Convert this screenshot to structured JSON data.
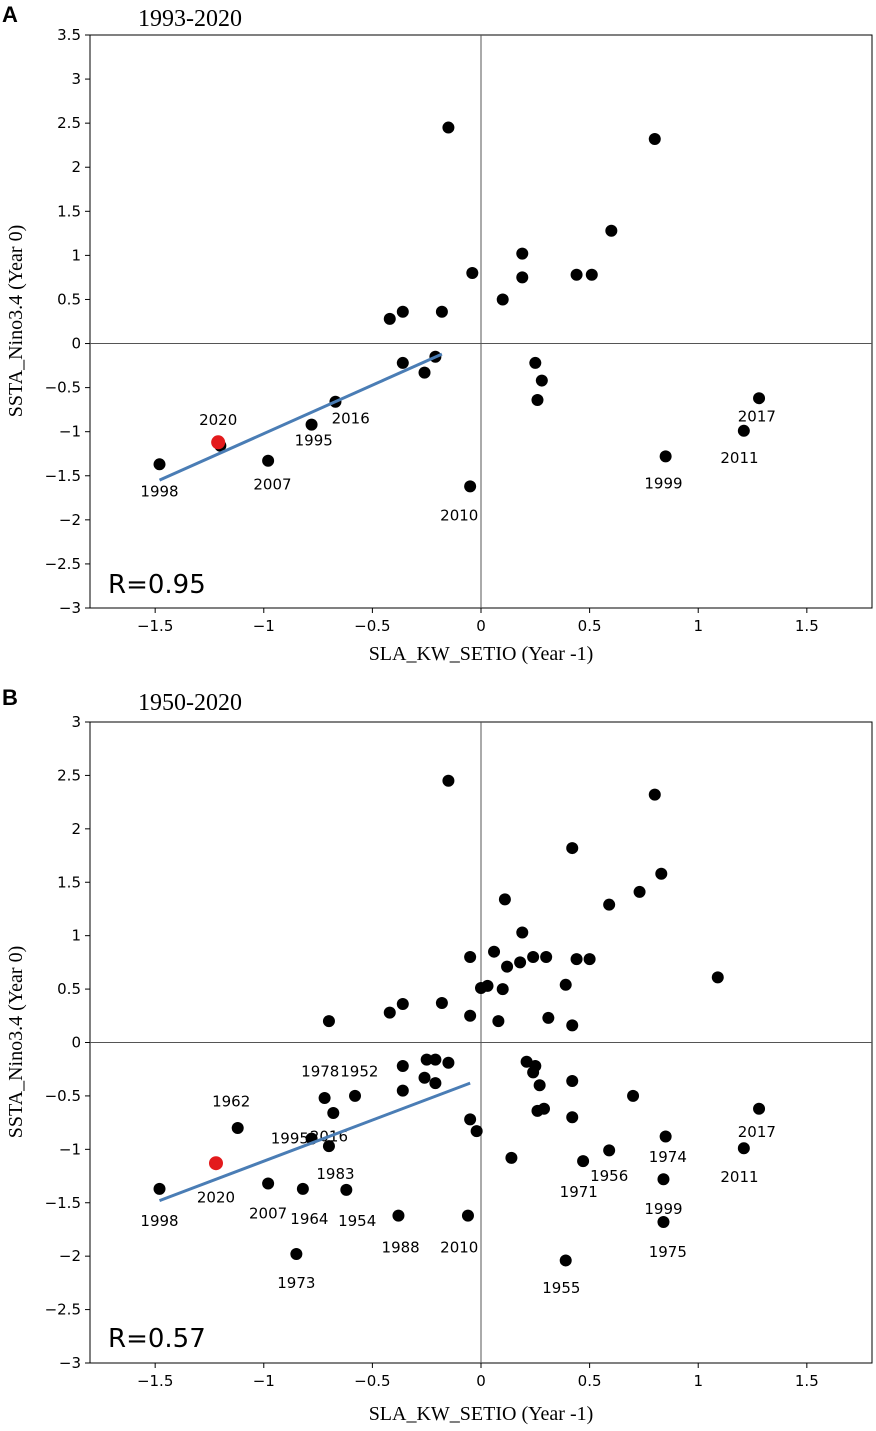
{
  "colors": {
    "point": "#000000",
    "highlight": "#e31a1c",
    "regression": "#4a7db5",
    "axis": "#000000",
    "zeroline": "#555555"
  },
  "chart_data": [
    {
      "type": "scatter",
      "panel": "A",
      "title": "1993-2020",
      "xlabel": "SLA_KW_SETIO (Year -1)",
      "ylabel": "SSTA_Nino3.4 (Year 0)",
      "xlim": [
        -1.8,
        1.8
      ],
      "ylim": [
        -3,
        3.5
      ],
      "xticks": [
        -1.5,
        -1,
        -0.5,
        0,
        0.5,
        1,
        1.5
      ],
      "xtick_labels": [
        "−1.5",
        "−1",
        "−0.5",
        "0",
        "0.5",
        "1",
        "1.5"
      ],
      "yticks": [
        -3,
        -2.5,
        -2,
        -1.5,
        -1,
        -0.5,
        0,
        0.5,
        1,
        1.5,
        2,
        2.5,
        3,
        3.5
      ],
      "ytick_labels": [
        "−3",
        "−2.5",
        "−2",
        "−1.5",
        "−1",
        "−0.5",
        "0",
        "0.5",
        "1",
        "1.5",
        "2",
        "2.5",
        "3",
        "3.5"
      ],
      "r_text": "R=0.95",
      "regression": {
        "x": [
          -1.48,
          -0.18
        ],
        "y": [
          -1.55,
          -0.12
        ]
      },
      "highlight": {
        "label": "2020",
        "x": -1.21,
        "y": -1.12,
        "lx": -1.21,
        "ly": -0.87
      },
      "points": [
        {
          "x": -1.48,
          "y": -1.37,
          "label": "1998",
          "lx": -1.48,
          "ly": -1.68
        },
        {
          "x": -1.2,
          "y": -1.16,
          "label": "",
          "lx": 0,
          "ly": 0
        },
        {
          "x": -0.98,
          "y": -1.33,
          "label": "2007",
          "lx": -0.96,
          "ly": -1.6
        },
        {
          "x": -0.78,
          "y": -0.92,
          "label": "1995",
          "lx": -0.77,
          "ly": -1.1
        },
        {
          "x": -0.67,
          "y": -0.66,
          "label": "2016",
          "lx": -0.6,
          "ly": -0.85
        },
        {
          "x": -0.42,
          "y": 0.28,
          "label": "",
          "lx": 0,
          "ly": 0
        },
        {
          "x": -0.36,
          "y": 0.36,
          "label": "",
          "lx": 0,
          "ly": 0
        },
        {
          "x": -0.36,
          "y": -0.22,
          "label": "",
          "lx": 0,
          "ly": 0
        },
        {
          "x": -0.26,
          "y": -0.33,
          "label": "",
          "lx": 0,
          "ly": 0
        },
        {
          "x": -0.21,
          "y": -0.15,
          "label": "",
          "lx": 0,
          "ly": 0
        },
        {
          "x": -0.18,
          "y": 0.36,
          "label": "",
          "lx": 0,
          "ly": 0
        },
        {
          "x": -0.15,
          "y": 2.45,
          "label": "",
          "lx": 0,
          "ly": 0
        },
        {
          "x": -0.04,
          "y": 0.8,
          "label": "",
          "lx": 0,
          "ly": 0
        },
        {
          "x": -0.05,
          "y": -1.62,
          "label": "2010",
          "lx": -0.1,
          "ly": -1.95
        },
        {
          "x": 0.1,
          "y": 0.5,
          "label": "",
          "lx": 0,
          "ly": 0
        },
        {
          "x": 0.19,
          "y": 1.02,
          "label": "",
          "lx": 0,
          "ly": 0
        },
        {
          "x": 0.19,
          "y": 0.75,
          "label": "",
          "lx": 0,
          "ly": 0
        },
        {
          "x": 0.25,
          "y": -0.22,
          "label": "",
          "lx": 0,
          "ly": 0
        },
        {
          "x": 0.28,
          "y": -0.42,
          "label": "",
          "lx": 0,
          "ly": 0
        },
        {
          "x": 0.26,
          "y": -0.64,
          "label": "",
          "lx": 0,
          "ly": 0
        },
        {
          "x": 0.44,
          "y": 0.78,
          "label": "",
          "lx": 0,
          "ly": 0
        },
        {
          "x": 0.51,
          "y": 0.78,
          "label": "",
          "lx": 0,
          "ly": 0
        },
        {
          "x": 0.6,
          "y": 1.28,
          "label": "",
          "lx": 0,
          "ly": 0
        },
        {
          "x": 0.8,
          "y": 2.32,
          "label": "",
          "lx": 0,
          "ly": 0
        },
        {
          "x": 0.85,
          "y": -1.28,
          "label": "1999",
          "lx": 0.84,
          "ly": -1.59
        },
        {
          "x": 1.21,
          "y": -0.99,
          "label": "2011",
          "lx": 1.19,
          "ly": -1.3
        },
        {
          "x": 1.28,
          "y": -0.62,
          "label": "2017",
          "lx": 1.27,
          "ly": -0.83
        }
      ]
    },
    {
      "type": "scatter",
      "panel": "B",
      "title": "1950-2020",
      "xlabel": "SLA_KW_SETIO (Year -1)",
      "ylabel": "SSTA_Nino3.4 (Year 0)",
      "xlim": [
        -1.8,
        1.8
      ],
      "ylim": [
        -3,
        3
      ],
      "xticks": [
        -1.5,
        -1,
        -0.5,
        0,
        0.5,
        1,
        1.5
      ],
      "xtick_labels": [
        "−1.5",
        "−1",
        "−0.5",
        "0",
        "0.5",
        "1",
        "1.5"
      ],
      "yticks": [
        -3,
        -2.5,
        -2,
        -1.5,
        -1,
        -0.5,
        0,
        0.5,
        1,
        1.5,
        2,
        2.5,
        3
      ],
      "ytick_labels": [
        "−3",
        "−2.5",
        "−2",
        "−1.5",
        "−1",
        "−0.5",
        "0",
        "0.5",
        "1",
        "1.5",
        "2",
        "2.5",
        "3"
      ],
      "r_text": "R=0.57",
      "regression": {
        "x": [
          -1.48,
          -0.05
        ],
        "y": [
          -1.48,
          -0.38
        ]
      },
      "highlight": {
        "label": "2020",
        "x": -1.22,
        "y": -1.13,
        "lx": -1.22,
        "ly": -1.45
      },
      "points": [
        {
          "x": -1.48,
          "y": -1.37,
          "label": "1998",
          "lx": -1.48,
          "ly": -1.67
        },
        {
          "x": -1.12,
          "y": -0.8,
          "label": "1962",
          "lx": -1.15,
          "ly": -0.55
        },
        {
          "x": -0.98,
          "y": -1.32,
          "label": "2007",
          "lx": -0.98,
          "ly": -1.6
        },
        {
          "x": -0.85,
          "y": -1.98,
          "label": "1973",
          "lx": -0.85,
          "ly": -2.25
        },
        {
          "x": -0.82,
          "y": -1.37,
          "label": "1964",
          "lx": -0.79,
          "ly": -1.65
        },
        {
          "x": -0.78,
          "y": -0.9,
          "label": "1995",
          "lx": -0.88,
          "ly": -0.9
        },
        {
          "x": -0.7,
          "y": 0.2,
          "label": "",
          "lx": 0,
          "ly": 0
        },
        {
          "x": -0.72,
          "y": -0.52,
          "label": "1978",
          "lx": -0.74,
          "ly": -0.27
        },
        {
          "x": -0.68,
          "y": -0.66,
          "label": "2016",
          "lx": -0.7,
          "ly": -0.88
        },
        {
          "x": -0.7,
          "y": -0.97,
          "label": "1983",
          "lx": -0.67,
          "ly": -1.23
        },
        {
          "x": -0.62,
          "y": -1.38,
          "label": "1954",
          "lx": -0.57,
          "ly": -1.67
        },
        {
          "x": -0.58,
          "y": -0.5,
          "label": "1952",
          "lx": -0.56,
          "ly": -0.27
        },
        {
          "x": -0.42,
          "y": 0.28,
          "label": "",
          "lx": 0,
          "ly": 0
        },
        {
          "x": -0.36,
          "y": 0.36,
          "label": "",
          "lx": 0,
          "ly": 0
        },
        {
          "x": -0.36,
          "y": -0.22,
          "label": "",
          "lx": 0,
          "ly": 0
        },
        {
          "x": -0.36,
          "y": -0.45,
          "label": "",
          "lx": 0,
          "ly": 0
        },
        {
          "x": -0.38,
          "y": -1.62,
          "label": "1988",
          "lx": -0.37,
          "ly": -1.92
        },
        {
          "x": -0.26,
          "y": -0.33,
          "label": "",
          "lx": 0,
          "ly": 0
        },
        {
          "x": -0.25,
          "y": -0.16,
          "label": "",
          "lx": 0,
          "ly": 0
        },
        {
          "x": -0.21,
          "y": -0.16,
          "label": "",
          "lx": 0,
          "ly": 0
        },
        {
          "x": -0.21,
          "y": -0.38,
          "label": "",
          "lx": 0,
          "ly": 0
        },
        {
          "x": -0.18,
          "y": 0.37,
          "label": "",
          "lx": 0,
          "ly": 0
        },
        {
          "x": -0.15,
          "y": 2.45,
          "label": "",
          "lx": 0,
          "ly": 0
        },
        {
          "x": -0.15,
          "y": -0.19,
          "label": "",
          "lx": 0,
          "ly": 0
        },
        {
          "x": -0.05,
          "y": 0.8,
          "label": "",
          "lx": 0,
          "ly": 0
        },
        {
          "x": -0.05,
          "y": 0.25,
          "label": "",
          "lx": 0,
          "ly": 0
        },
        {
          "x": -0.05,
          "y": -0.72,
          "label": "",
          "lx": 0,
          "ly": 0
        },
        {
          "x": -0.06,
          "y": -1.62,
          "label": "2010",
          "lx": -0.1,
          "ly": -1.92
        },
        {
          "x": -0.02,
          "y": -0.83,
          "label": "",
          "lx": 0,
          "ly": 0
        },
        {
          "x": 0.0,
          "y": 0.51,
          "label": "",
          "lx": 0,
          "ly": 0
        },
        {
          "x": 0.03,
          "y": 0.53,
          "label": "",
          "lx": 0,
          "ly": 0
        },
        {
          "x": 0.06,
          "y": 0.85,
          "label": "",
          "lx": 0,
          "ly": 0
        },
        {
          "x": 0.08,
          "y": 0.2,
          "label": "",
          "lx": 0,
          "ly": 0
        },
        {
          "x": 0.1,
          "y": 0.5,
          "label": "",
          "lx": 0,
          "ly": 0
        },
        {
          "x": 0.11,
          "y": 1.34,
          "label": "",
          "lx": 0,
          "ly": 0
        },
        {
          "x": 0.12,
          "y": 0.71,
          "label": "",
          "lx": 0,
          "ly": 0
        },
        {
          "x": 0.14,
          "y": -1.08,
          "label": "",
          "lx": 0,
          "ly": 0
        },
        {
          "x": 0.18,
          "y": 0.75,
          "label": "",
          "lx": 0,
          "ly": 0
        },
        {
          "x": 0.19,
          "y": 1.03,
          "label": "",
          "lx": 0,
          "ly": 0
        },
        {
          "x": 0.21,
          "y": -0.18,
          "label": "",
          "lx": 0,
          "ly": 0
        },
        {
          "x": 0.24,
          "y": 0.8,
          "label": "",
          "lx": 0,
          "ly": 0
        },
        {
          "x": 0.24,
          "y": -0.28,
          "label": "",
          "lx": 0,
          "ly": 0
        },
        {
          "x": 0.25,
          "y": -0.22,
          "label": "",
          "lx": 0,
          "ly": 0
        },
        {
          "x": 0.27,
          "y": -0.4,
          "label": "",
          "lx": 0,
          "ly": 0
        },
        {
          "x": 0.26,
          "y": -0.64,
          "label": "",
          "lx": 0,
          "ly": 0
        },
        {
          "x": 0.29,
          "y": -0.62,
          "label": "",
          "lx": 0,
          "ly": 0
        },
        {
          "x": 0.3,
          "y": 0.8,
          "label": "",
          "lx": 0,
          "ly": 0
        },
        {
          "x": 0.31,
          "y": 0.23,
          "label": "",
          "lx": 0,
          "ly": 0
        },
        {
          "x": 0.39,
          "y": 0.54,
          "label": "",
          "lx": 0,
          "ly": 0
        },
        {
          "x": 0.39,
          "y": -2.04,
          "label": "1955",
          "lx": 0.37,
          "ly": -2.3
        },
        {
          "x": 0.42,
          "y": 1.82,
          "label": "",
          "lx": 0,
          "ly": 0
        },
        {
          "x": 0.42,
          "y": 0.16,
          "label": "",
          "lx": 0,
          "ly": 0
        },
        {
          "x": 0.42,
          "y": -0.36,
          "label": "",
          "lx": 0,
          "ly": 0
        },
        {
          "x": 0.42,
          "y": -0.7,
          "label": "",
          "lx": 0,
          "ly": 0
        },
        {
          "x": 0.44,
          "y": 0.78,
          "label": "",
          "lx": 0,
          "ly": 0
        },
        {
          "x": 0.47,
          "y": -1.11,
          "label": "1971",
          "lx": 0.45,
          "ly": -1.4
        },
        {
          "x": 0.5,
          "y": 0.78,
          "label": "",
          "lx": 0,
          "ly": 0
        },
        {
          "x": 0.59,
          "y": 1.29,
          "label": "",
          "lx": 0,
          "ly": 0
        },
        {
          "x": 0.59,
          "y": -1.01,
          "label": "1956",
          "lx": 0.59,
          "ly": -1.25
        },
        {
          "x": 0.73,
          "y": 1.41,
          "label": "",
          "lx": 0,
          "ly": 0
        },
        {
          "x": 0.7,
          "y": -0.5,
          "label": "",
          "lx": 0,
          "ly": 0
        },
        {
          "x": 0.8,
          "y": 2.32,
          "label": "",
          "lx": 0,
          "ly": 0
        },
        {
          "x": 0.83,
          "y": 1.58,
          "label": "",
          "lx": 0,
          "ly": 0
        },
        {
          "x": 0.85,
          "y": -0.88,
          "label": "1974",
          "lx": 0.86,
          "ly": -1.07
        },
        {
          "x": 0.84,
          "y": -1.28,
          "label": "1999",
          "lx": 0.84,
          "ly": -1.56
        },
        {
          "x": 0.84,
          "y": -1.68,
          "label": "1975",
          "lx": 0.86,
          "ly": -1.96
        },
        {
          "x": 1.09,
          "y": 0.61,
          "label": "",
          "lx": 0,
          "ly": 0
        },
        {
          "x": 1.21,
          "y": -0.99,
          "label": "2011",
          "lx": 1.19,
          "ly": -1.26
        },
        {
          "x": 1.28,
          "y": -0.62,
          "label": "2017",
          "lx": 1.27,
          "ly": -0.84
        }
      ]
    }
  ]
}
